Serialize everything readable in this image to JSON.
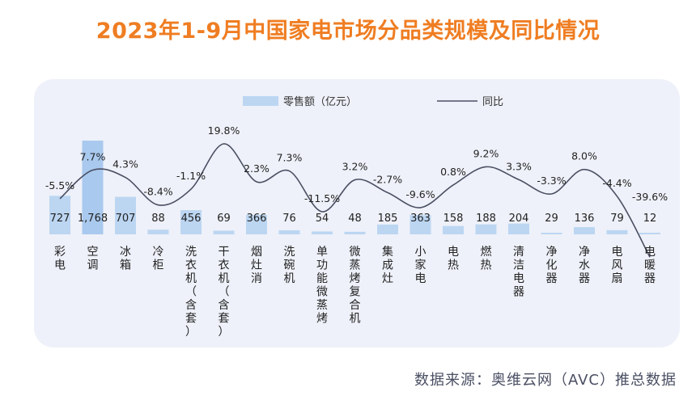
{
  "title": "2023年1-9月中国家电市场分品类规模及同比情况",
  "source": "数据来源：奥维云网（AVC）推总数据",
  "colors": {
    "title": "#ef7d22",
    "bar": "#bcd6f2",
    "bar_highlight": "#a9c9ee",
    "line": "#4a4f63",
    "panel": "#eef1f9"
  },
  "chart_data": {
    "type": "bar",
    "categories": [
      "彩电",
      "空调",
      "冰箱",
      "冷柜",
      "洗衣机（含套）",
      "干衣机（含套）",
      "烟灶消",
      "洗碗机",
      "单功能微蒸烤",
      "微蒸烤复合机",
      "集成灶",
      "小家电",
      "电热",
      "燃热",
      "清洁电器",
      "净化器",
      "净水器",
      "电风扇",
      "电暖器"
    ],
    "series": [
      {
        "name": "零售额（亿元）",
        "type": "bar",
        "values": [
          727,
          1768,
          707,
          88,
          456,
          69,
          366,
          76,
          54,
          48,
          185,
          363,
          158,
          188,
          204,
          29,
          136,
          79,
          12
        ],
        "labels": [
          "727",
          "1,768",
          "707",
          "88",
          "456",
          "69",
          "366",
          "76",
          "54",
          "48",
          "185",
          "363",
          "158",
          "188",
          "204",
          "29",
          "136",
          "79",
          "12"
        ]
      },
      {
        "name": "同比",
        "type": "line",
        "values": [
          -5.5,
          7.7,
          4.3,
          -8.4,
          -1.1,
          19.8,
          2.3,
          7.3,
          -11.5,
          3.2,
          -2.7,
          -9.6,
          0.8,
          9.2,
          3.3,
          -3.3,
          8.0,
          -4.4,
          -39.6
        ],
        "labels": [
          "-5.5%",
          "7.7%",
          "4.3%",
          "-8.4%",
          "-1.1%",
          "19.8%",
          "2.3%",
          "7.3%",
          "-11.5%",
          "3.2%",
          "-2.7%",
          "-9.6%",
          "0.8%",
          "9.2%",
          "3.3%",
          "-3.3%",
          "8.0%",
          "-4.4%",
          "-39.6%"
        ]
      }
    ],
    "legend": {
      "position": "top-center",
      "items": [
        "零售额（亿元）",
        "同比"
      ]
    },
    "grid": false
  }
}
